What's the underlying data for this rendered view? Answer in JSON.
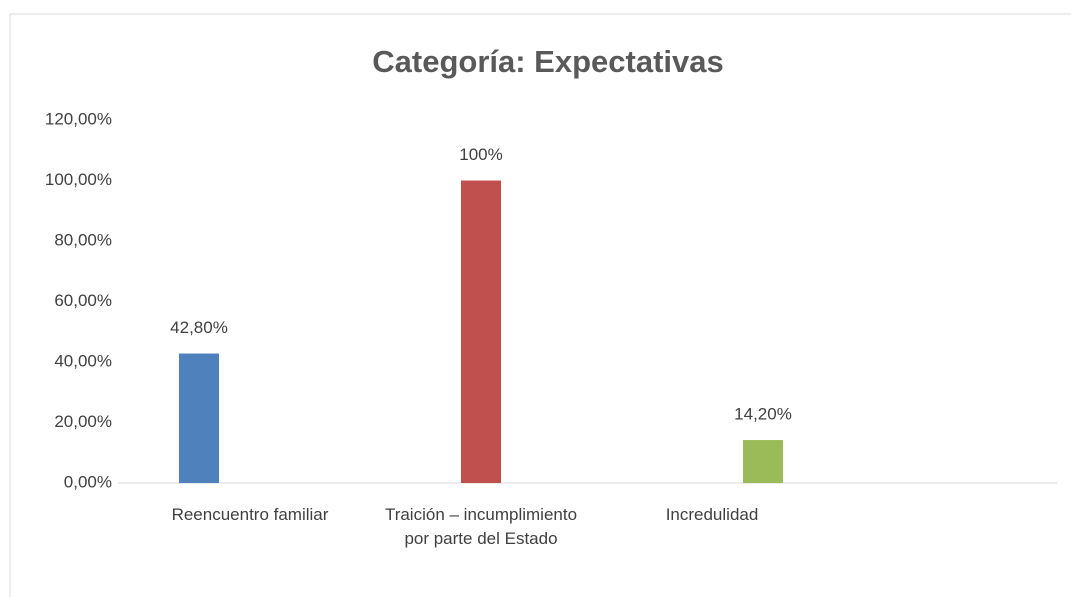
{
  "chart_data": {
    "type": "bar",
    "title": "Categoría: Expectativas",
    "categories": [
      "Reencuentro familiar",
      "Traición – incumplimiento por parte del Estado",
      "Incredulidad"
    ],
    "values": [
      42.8,
      100,
      14.2
    ],
    "value_labels": [
      "42,80%",
      "100%",
      "14,20%"
    ],
    "colors": [
      "#4f81bd",
      "#c0504d",
      "#9bbb59"
    ],
    "ylim": [
      0,
      120
    ],
    "yticks": [
      {
        "value": 0,
        "label": "0,00%"
      },
      {
        "value": 20,
        "label": "20,00%"
      },
      {
        "value": 40,
        "label": "40,00%"
      },
      {
        "value": 60,
        "label": "60,00%"
      },
      {
        "value": 80,
        "label": "80,00%"
      },
      {
        "value": 100,
        "label": "100,00%"
      },
      {
        "value": 120,
        "label": "120,00%"
      }
    ]
  }
}
